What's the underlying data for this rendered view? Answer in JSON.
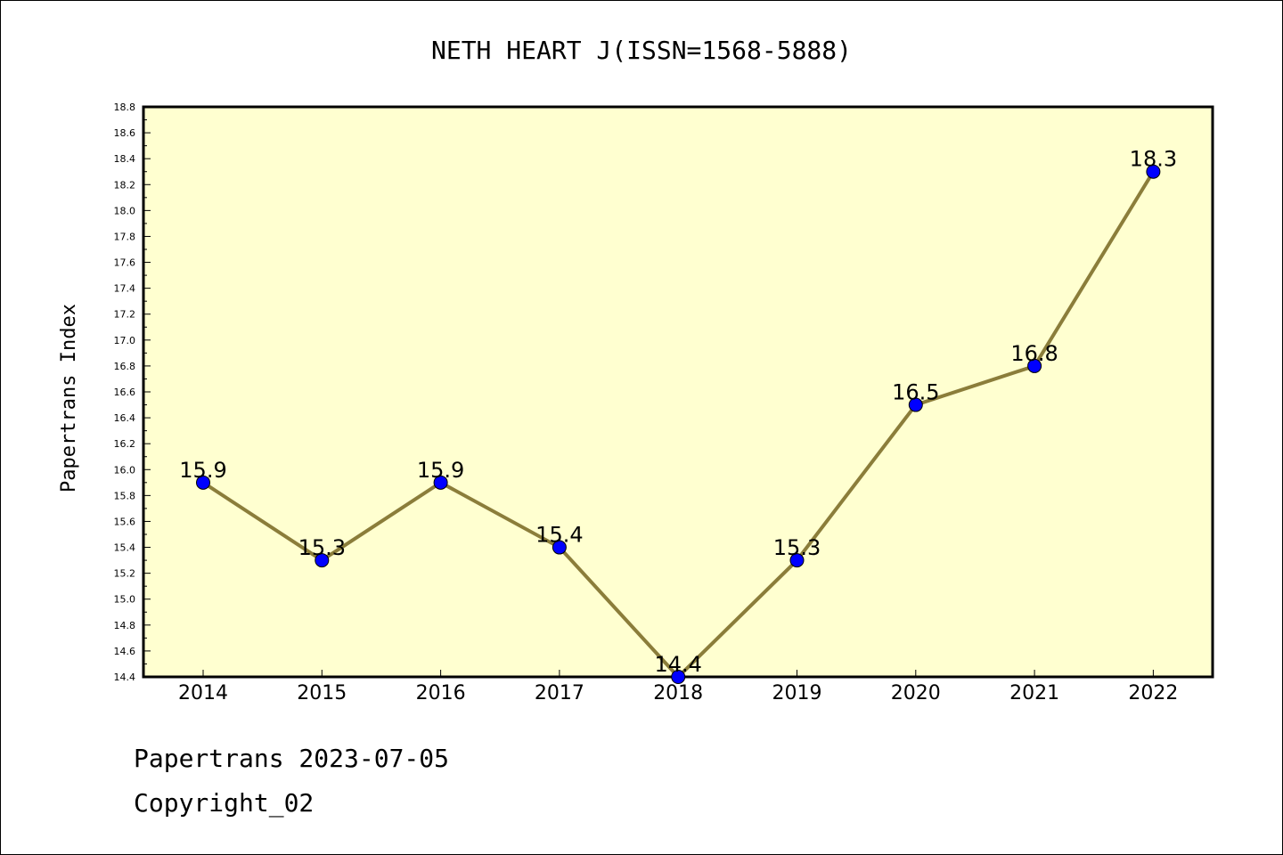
{
  "chart_data": {
    "type": "line",
    "title": "NETH HEART J(ISSN=1568-5888)",
    "xlabel": "",
    "ylabel": "Papertrans Index",
    "categories": [
      "2014",
      "2015",
      "2016",
      "2017",
      "2018",
      "2019",
      "2020",
      "2021",
      "2022"
    ],
    "series": [
      {
        "values": [
          15.9,
          15.3,
          15.9,
          15.4,
          14.4,
          15.3,
          16.5,
          16.8,
          18.3
        ],
        "labels": [
          "15.9",
          "15.3",
          "15.9",
          "15.4",
          "14.4",
          "15.3",
          "16.5",
          "16.8",
          "18.3"
        ],
        "line_color": "#8b7d3a",
        "marker_color": "#0000ff"
      }
    ],
    "ylim": [
      14.4,
      18.8
    ],
    "yticks": [
      "14.4",
      "14.6",
      "14.8",
      "15.0",
      "15.2",
      "15.4",
      "15.6",
      "15.8",
      "16.0",
      "16.2",
      "16.4",
      "16.6",
      "16.8",
      "17.0",
      "17.2",
      "17.4",
      "17.6",
      "17.8",
      "18.0",
      "18.2",
      "18.4",
      "18.6",
      "18.8"
    ],
    "grid": false,
    "plot_background": "#ffffd0"
  },
  "footer": {
    "date_line": "Papertrans 2023-07-05",
    "copyright": "Copyright_02"
  }
}
